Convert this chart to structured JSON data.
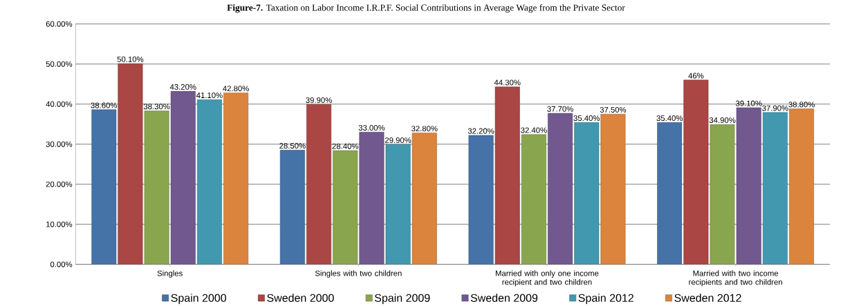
{
  "chart_data": {
    "type": "bar",
    "title": "**Figure-7.** Taxation on Labor Income I.R.P.F. Social Contributions in Average Wage from the Private Sector",
    "categories": [
      "Singles",
      "Singles with two children",
      "Married with only one income recipient and two children",
      "Married with two income recipients and two children"
    ],
    "series": [
      {
        "name": "Spain 2000",
        "color": "#4572a7",
        "values": [
          38.6,
          28.5,
          32.2,
          35.4
        ],
        "value_labels": [
          "38.60%",
          "28.50%",
          "32.20%",
          "35.40%"
        ]
      },
      {
        "name": "Sweden 2000",
        "color": "#aa4643",
        "values": [
          50.1,
          39.9,
          44.3,
          46
        ],
        "value_labels": [
          "50.10%",
          "39.90%",
          "44.30%",
          "46%"
        ]
      },
      {
        "name": "Spain 2009",
        "color": "#89a54e",
        "values": [
          38.3,
          28.4,
          32.4,
          34.9
        ],
        "value_labels": [
          "38.30%",
          "28.40%",
          "32.40%",
          "34.90%"
        ]
      },
      {
        "name": "Sweden 2009",
        "color": "#71588f",
        "values": [
          43.2,
          33.0,
          37.7,
          39.1
        ],
        "value_labels": [
          "43.20%",
          "33.00%",
          "37.70%",
          "39.10%"
        ]
      },
      {
        "name": "Spain 2012",
        "color": "#4198af",
        "values": [
          41.1,
          29.9,
          35.4,
          37.9
        ],
        "value_labels": [
          "41.10%",
          "29.90%",
          "35.40%",
          "37.90%"
        ]
      },
      {
        "name": "Sweden 2012",
        "color": "#db843d",
        "values": [
          42.8,
          32.8,
          37.5,
          38.8
        ],
        "value_labels": [
          "42.80%",
          "32.80%",
          "37.50%",
          "38.80%"
        ]
      }
    ],
    "ylim": [
      0,
      60
    ],
    "yticks": [
      {
        "value": 0,
        "label": "0.00%"
      },
      {
        "value": 10,
        "label": "10.00%"
      },
      {
        "value": 20,
        "label": "20.00%"
      },
      {
        "value": 30,
        "label": "30.00%"
      },
      {
        "value": 40,
        "label": "40.00%"
      },
      {
        "value": 50,
        "label": "50.00%"
      },
      {
        "value": 60,
        "label": "60.00%"
      }
    ],
    "grid": "y",
    "legend": "bottom"
  }
}
